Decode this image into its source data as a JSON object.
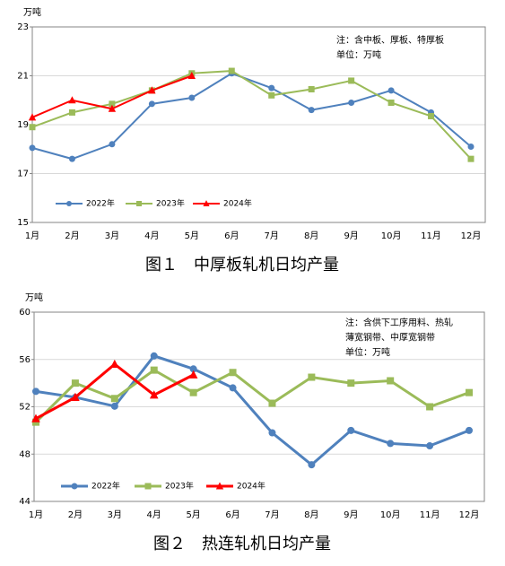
{
  "chart_data": [
    {
      "type": "line",
      "y_label": "万吨",
      "caption": "图１　中厚板轧机日均产量",
      "notes": [
        "注：含中板、厚板、特厚板",
        "单位：万吨"
      ],
      "categories": [
        "1月",
        "2月",
        "3月",
        "4月",
        "5月",
        "6月",
        "7月",
        "8月",
        "9月",
        "10月",
        "11月",
        "12月"
      ],
      "series": [
        {
          "name": "2022年",
          "color": "#4f81bd",
          "marker": "circle",
          "values": [
            18.05,
            17.6,
            18.2,
            19.85,
            20.1,
            21.1,
            20.5,
            19.6,
            19.9,
            20.4,
            19.5,
            18.1
          ]
        },
        {
          "name": "2023年",
          "color": "#9bbb59",
          "marker": "square",
          "values": [
            18.9,
            19.5,
            19.85,
            20.4,
            21.1,
            21.2,
            20.2,
            20.45,
            20.8,
            19.9,
            19.35,
            17.6
          ]
        },
        {
          "name": "2024年",
          "color": "#ff0000",
          "marker": "triangle",
          "values": [
            19.3,
            20.0,
            19.65,
            20.4,
            21.0,
            null,
            null,
            null,
            null,
            null,
            null,
            null
          ]
        }
      ],
      "ylim": [
        15,
        23
      ],
      "yticks": [
        15,
        17,
        19,
        21,
        23
      ],
      "grid": true,
      "legend": "lower left"
    },
    {
      "type": "line",
      "y_label": "万吨",
      "caption": "图２　热连轧机日均产量",
      "notes": [
        "注：含供下工序用料、热轧",
        "薄宽钢带、中厚宽钢带",
        "单位：万吨"
      ],
      "categories": [
        "1月",
        "2月",
        "3月",
        "4月",
        "5月",
        "6月",
        "7月",
        "8月",
        "9月",
        "10月",
        "11月",
        "12月"
      ],
      "series": [
        {
          "name": "2022年",
          "color": "#4f81bd",
          "marker": "circle",
          "values": [
            53.3,
            52.8,
            52.05,
            56.3,
            55.2,
            53.6,
            49.8,
            47.1,
            50.0,
            48.9,
            48.7,
            50.0
          ]
        },
        {
          "name": "2023年",
          "color": "#9bbb59",
          "marker": "square",
          "values": [
            50.7,
            54.0,
            52.7,
            55.1,
            53.2,
            54.9,
            52.3,
            54.5,
            54.0,
            54.2,
            52.0,
            53.2
          ]
        },
        {
          "name": "2024年",
          "color": "#ff0000",
          "marker": "triangle",
          "values": [
            51.0,
            52.8,
            55.6,
            53.0,
            54.7,
            null,
            null,
            null,
            null,
            null,
            null,
            null
          ]
        }
      ],
      "ylim": [
        44,
        60
      ],
      "yticks": [
        44,
        48,
        52,
        56,
        60
      ],
      "grid": true,
      "legend": "lower left"
    }
  ]
}
